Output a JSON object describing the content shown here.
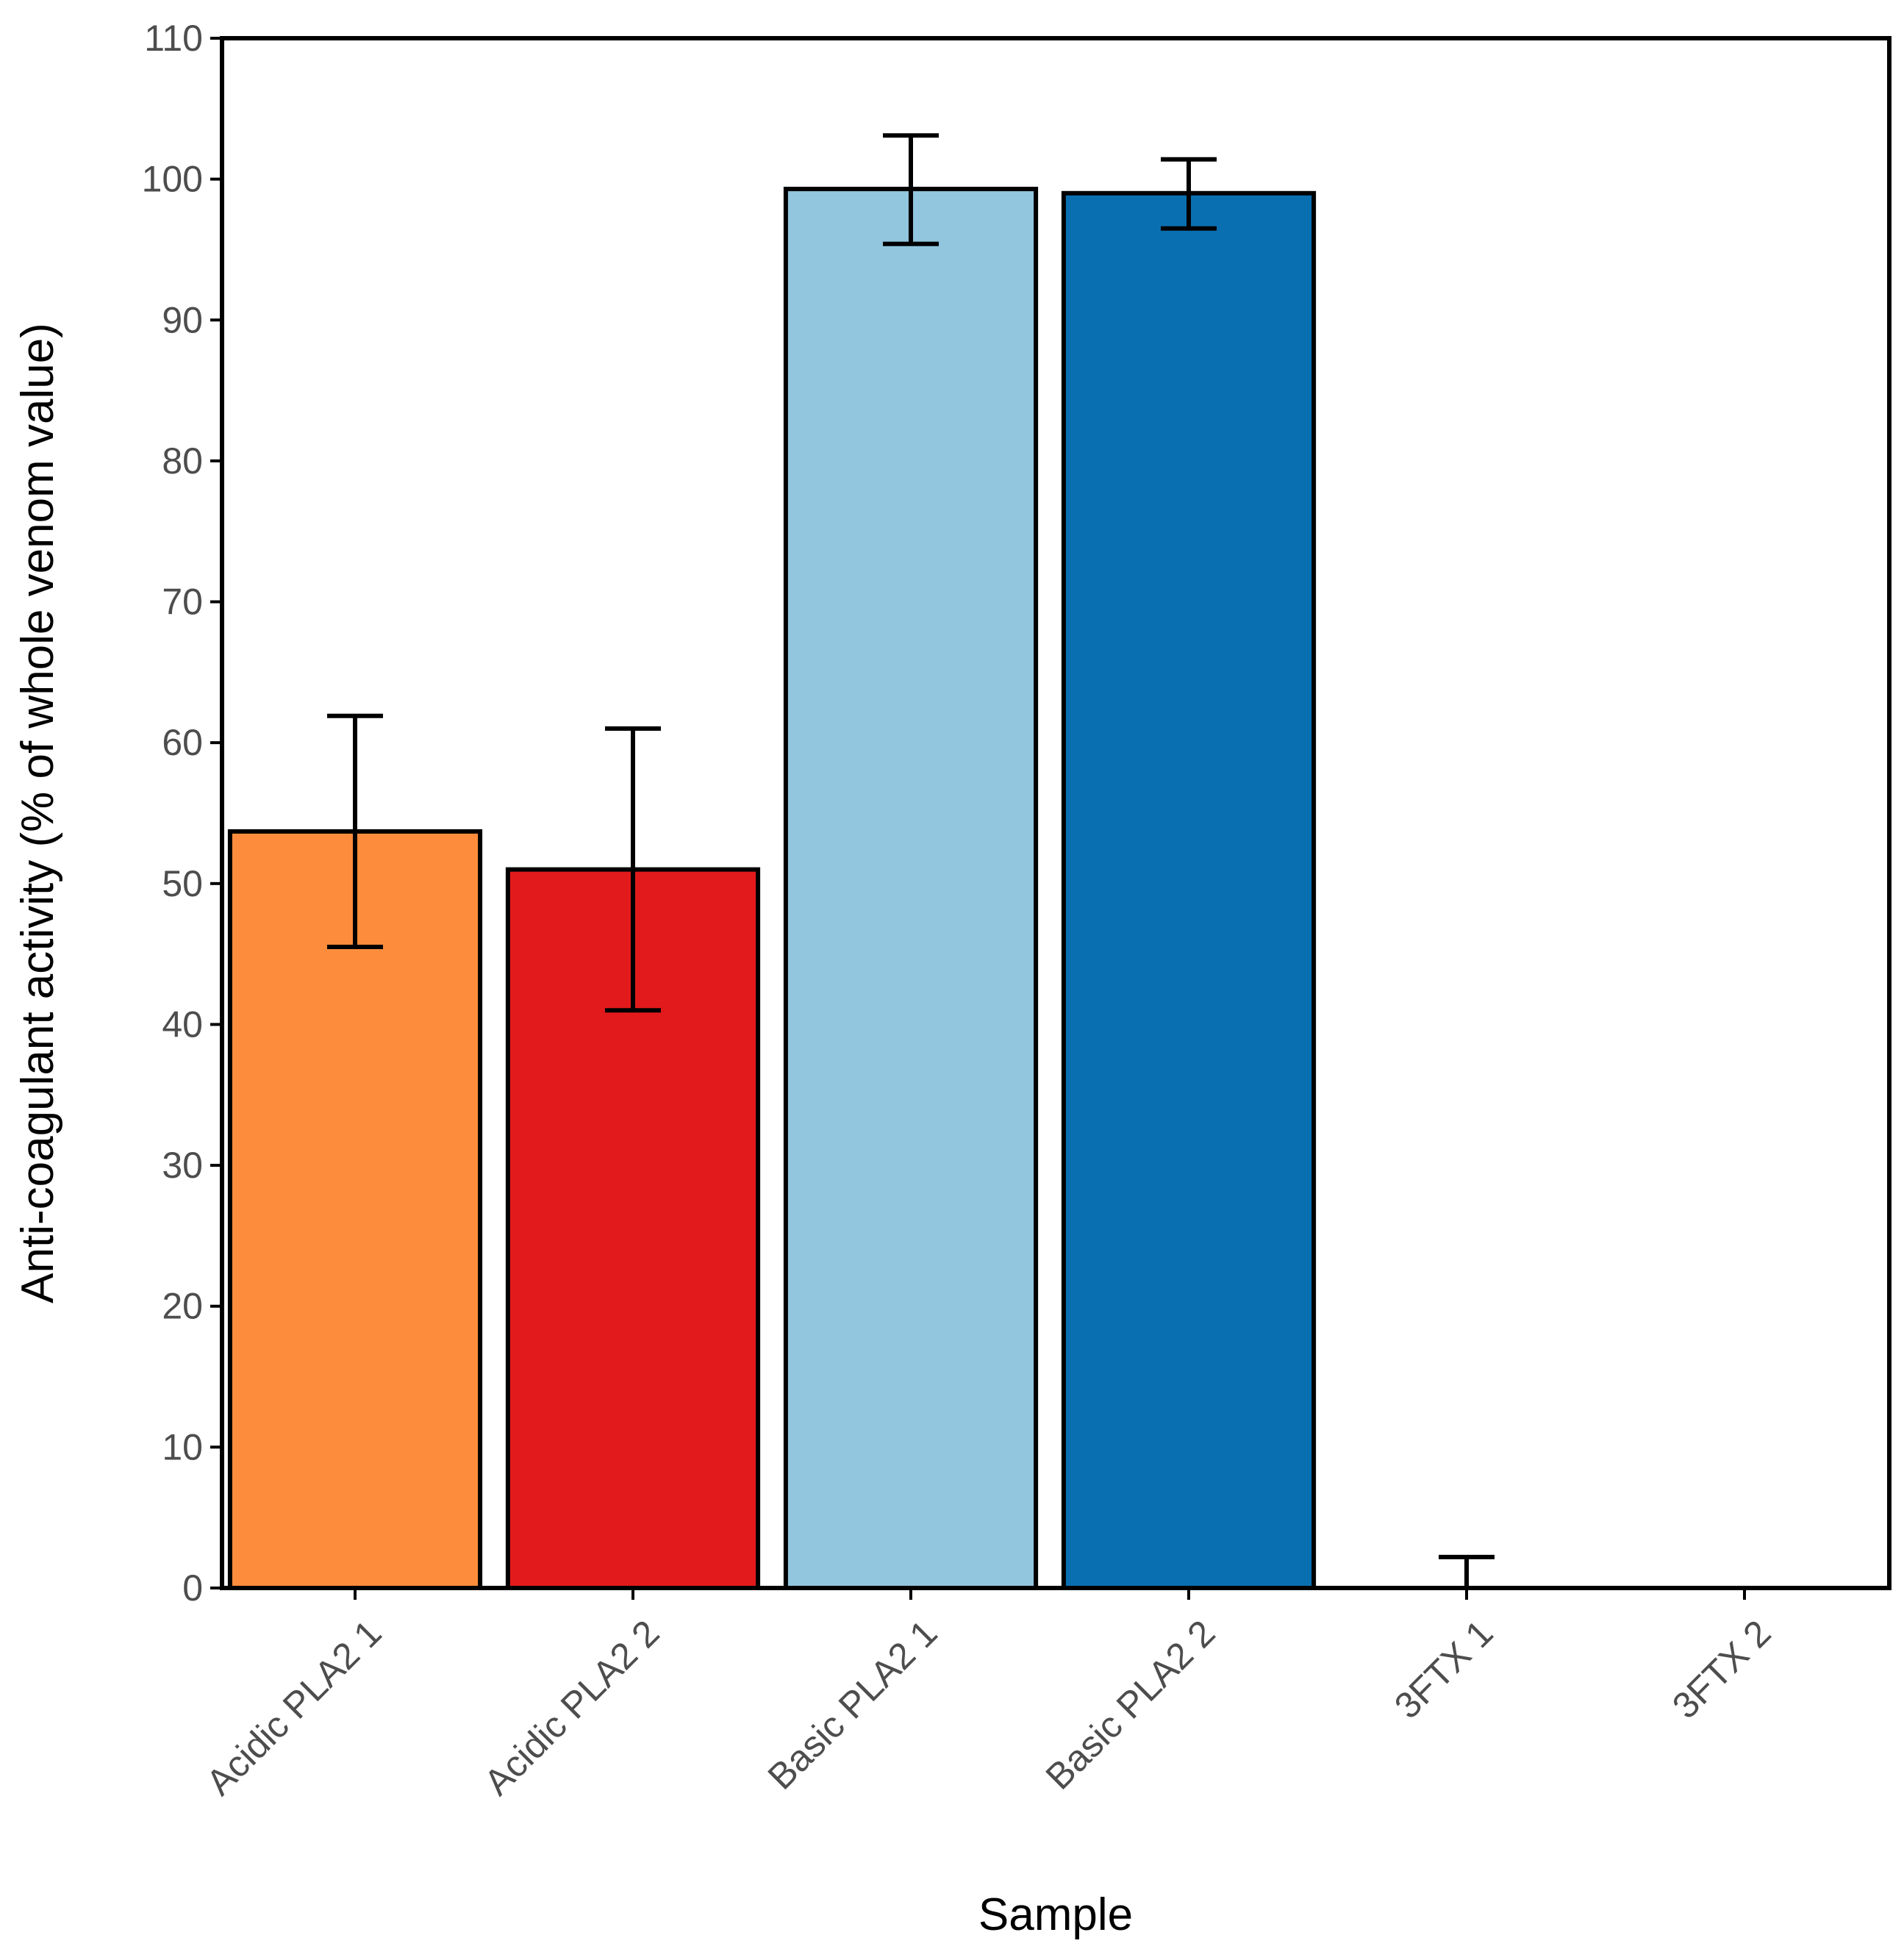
{
  "chart_data": {
    "type": "bar",
    "title": "",
    "xlabel": "Sample",
    "ylabel": "Anti-coagulant activity (% of whole venom value)",
    "ylim": [
      0,
      110
    ],
    "yticks": [
      0,
      10,
      20,
      30,
      40,
      50,
      60,
      70,
      80,
      90,
      100,
      110
    ],
    "grid": false,
    "categories": [
      "Acidic PLA2 1",
      "Acidic PLA2 2",
      "Basic PLA2 1",
      "Basic PLA2 2",
      "3FTX 1",
      "3FTX 2"
    ],
    "values": [
      53.7,
      51.0,
      99.3,
      99.0,
      0,
      0
    ],
    "error_low": [
      45.5,
      41.0,
      95.4,
      96.5,
      0,
      0
    ],
    "error_high": [
      61.9,
      61.0,
      103.1,
      101.4,
      2.2,
      0
    ],
    "colors": [
      "#fd8d3c",
      "#e31a1c",
      "#92c5de",
      "#0a6fb0",
      "#ffffff",
      "#ffffff"
    ]
  }
}
